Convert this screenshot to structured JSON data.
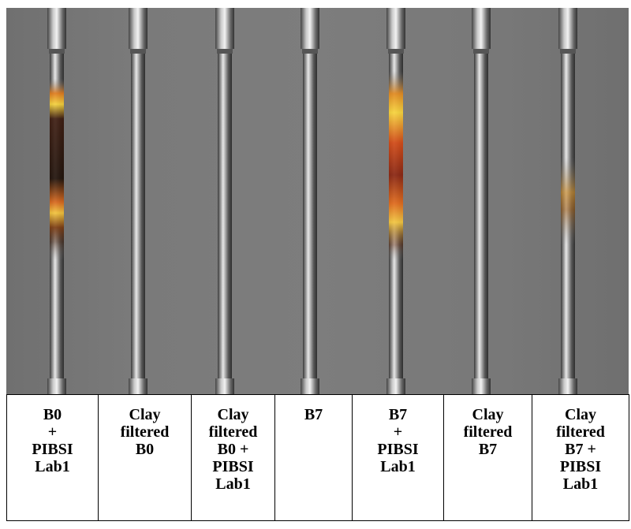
{
  "labels": [
    "B0\n+\nPIBSI\nLab1",
    "Clay\nfiltered\nB0",
    "Clay\nfiltered\nB0 +\nPIBSI\nLab1",
    "B7",
    "B7\n+\nPIBSI\nLab1",
    "Clay\nfiltered\nB7",
    "Clay\nfiltered\nB7 +\nPIBSI\nLab1"
  ],
  "colors": {
    "background": "#7a7a7a",
    "deposit_dark": "#4a1f10",
    "deposit_orange": "#e07a1a",
    "deposit_yellow": "#f6d23a"
  }
}
